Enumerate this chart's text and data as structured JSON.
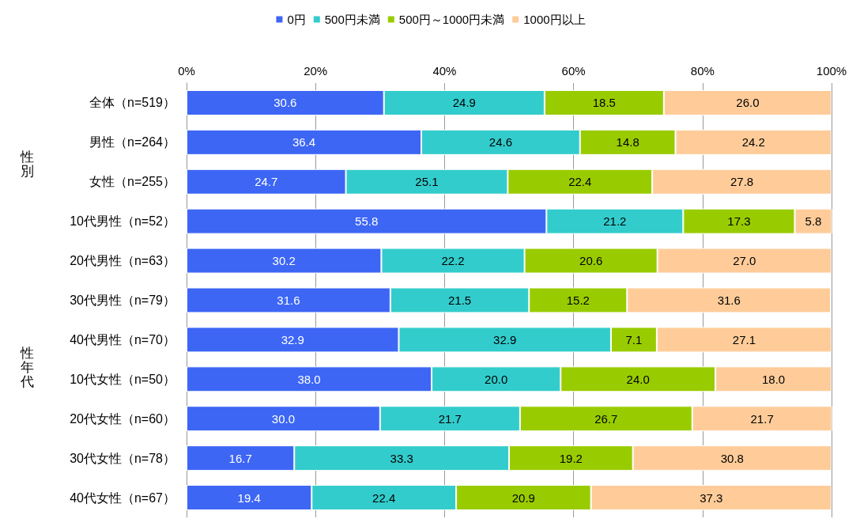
{
  "chart_data": {
    "type": "bar",
    "orientation": "horizontal",
    "stacked": true,
    "legend": "top",
    "grid": "x",
    "xlim": [
      0,
      100
    ],
    "xticks": [
      {
        "value": 0,
        "label": "0%"
      },
      {
        "value": 20,
        "label": "20%"
      },
      {
        "value": 40,
        "label": "40%"
      },
      {
        "value": 60,
        "label": "60%"
      },
      {
        "value": 80,
        "label": "80%"
      },
      {
        "value": 100,
        "label": "100%"
      }
    ],
    "categories": [
      "全体（n=519）",
      "男性（n=264）",
      "女性（n=255）",
      "10代男性（n=52）",
      "20代男性（n=63）",
      "30代男性（n=79）",
      "40代男性（n=70）",
      "10代女性（n=50）",
      "20代女性（n=60）",
      "30代女性（n=78）",
      "40代女性（n=67）"
    ],
    "annotations": [
      "性別",
      "性年代"
    ],
    "series": [
      {
        "name": "0円",
        "color": "#3d66f5",
        "values": [
          30.6,
          36.4,
          24.7,
          55.8,
          30.2,
          31.6,
          32.9,
          38.0,
          30.0,
          16.7,
          19.4
        ],
        "value_labels": [
          "30.6",
          "36.4",
          "24.7",
          "55.8",
          "30.2",
          "31.6",
          "32.9",
          "38.0",
          "30.0",
          "16.7",
          "19.4"
        ]
      },
      {
        "name": "500円未満",
        "color": "#33cccc",
        "values": [
          24.9,
          24.6,
          25.1,
          21.2,
          22.2,
          21.5,
          32.9,
          20.0,
          21.7,
          33.3,
          22.4
        ],
        "value_labels": [
          "24.9",
          "24.6",
          "25.1",
          "21.2",
          "22.2",
          "21.5",
          "32.9",
          "20.0",
          "21.7",
          "33.3",
          "22.4"
        ]
      },
      {
        "name": "500円～1000円未満",
        "color": "#99cc00",
        "values": [
          18.5,
          14.8,
          22.4,
          17.3,
          20.6,
          15.2,
          7.1,
          24.0,
          26.7,
          19.2,
          20.9
        ],
        "value_labels": [
          "18.5",
          "14.8",
          "22.4",
          "17.3",
          "20.6",
          "15.2",
          "7.1",
          "24.0",
          "26.7",
          "19.2",
          "20.9"
        ]
      },
      {
        "name": "1000円以上",
        "color": "#ffcc99",
        "values": [
          26.0,
          24.2,
          27.8,
          5.8,
          27.0,
          31.6,
          27.1,
          18.0,
          21.7,
          30.8,
          37.3
        ],
        "value_labels": [
          "26.0",
          "24.2",
          "27.8",
          "5.8",
          "27.0",
          "31.6",
          "27.1",
          "18.0",
          "21.7",
          "30.8",
          "37.3"
        ]
      }
    ]
  }
}
